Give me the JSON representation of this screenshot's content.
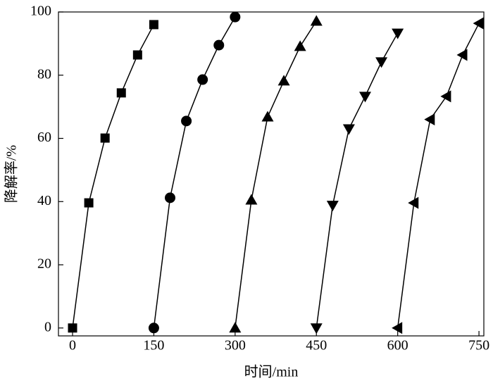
{
  "chart_data": {
    "type": "line",
    "x_label": "时间/min",
    "y_label": "降解率/%",
    "xlim": [
      -26,
      759
    ],
    "ylim": [
      -2.5,
      100
    ],
    "xticks": [
      0,
      150,
      300,
      450,
      600,
      750
    ],
    "yticks": [
      0,
      20,
      40,
      60,
      80,
      100
    ],
    "series": [
      {
        "color": "#000000",
        "marker": "square",
        "x": [
          0,
          30,
          60,
          90,
          120,
          150
        ],
        "values": [
          0,
          39.6,
          60.1,
          74.4,
          86.4,
          96
        ]
      },
      {
        "color": "#000000",
        "marker": "circle",
        "x": [
          150,
          180,
          210,
          240,
          270,
          300
        ],
        "values": [
          0,
          41.2,
          65.5,
          78.6,
          89.5,
          98.4
        ]
      },
      {
        "color": "#000000",
        "marker": "triangle-up",
        "x": [
          300,
          330,
          360,
          390,
          420,
          450
        ],
        "values": [
          0,
          40.5,
          66.8,
          78.2,
          89.1,
          97.1
        ]
      },
      {
        "color": "#000000",
        "marker": "triangle-down",
        "x": [
          450,
          480,
          510,
          540,
          570,
          600
        ],
        "values": [
          0,
          38.8,
          63,
          73.3,
          84.2,
          93.3
        ]
      },
      {
        "color": "#000000",
        "marker": "triangle-left",
        "x": [
          600,
          630,
          660,
          690,
          720,
          750
        ],
        "values": [
          0,
          39.6,
          66,
          73.3,
          86.4,
          96.4
        ]
      }
    ]
  }
}
